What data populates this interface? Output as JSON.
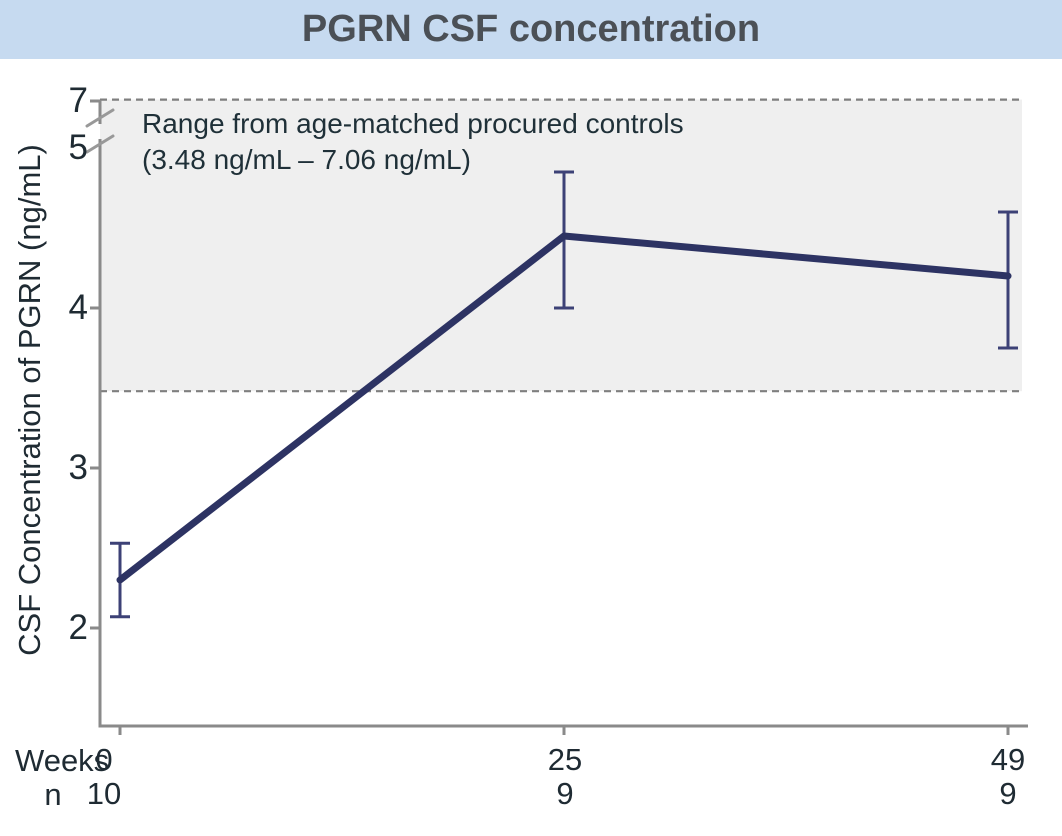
{
  "header": {
    "title": "PGRN CSF concentration"
  },
  "chart_data": {
    "type": "line",
    "title": "PGRN CSF concentration",
    "ylabel": "CSF Concentration of PGRN (ng/mL)",
    "x_axis_label": "Weeks",
    "n_label": "n",
    "weeks": [
      "0",
      "25",
      "49"
    ],
    "n": [
      "10",
      "9",
      "9"
    ],
    "series": [
      {
        "name": "PGRN CSF concentration",
        "values": [
          2.3,
          4.45,
          4.2
        ],
        "error_low": [
          2.07,
          4.0,
          3.75
        ],
        "error_high": [
          2.53,
          4.85,
          4.6
        ]
      }
    ],
    "y_ticks": [
      2,
      3,
      4,
      5,
      7
    ],
    "y_axis_break": {
      "between": [
        5,
        7
      ]
    },
    "ylim": [
      1.4,
      7.3
    ],
    "grid": "off",
    "legend": "none",
    "control_range": {
      "low": 3.48,
      "high": 7.06,
      "label_line1": "Range from age-matched procured controls",
      "label_line2": "(3.48 ng/mL – 7.06 ng/mL)"
    },
    "colors": {
      "line": "#2d3363",
      "error_bar": "#3c4176",
      "band_fill": "#efefef",
      "dashed_line": "#7f7f7f",
      "axis": "#8a8a8a",
      "break_mark": "#999999",
      "text": "#1f2b33",
      "header_bg": "#c6daf0",
      "title_text": "#4b5056"
    }
  }
}
